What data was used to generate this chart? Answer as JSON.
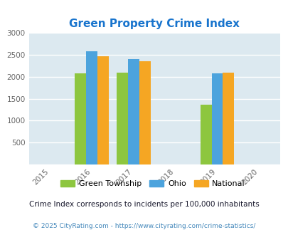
{
  "title": "Green Property Crime Index",
  "title_color": "#1874CD",
  "years": [
    2016,
    2017,
    2019
  ],
  "green_township": [
    2070,
    2100,
    1370
  ],
  "ohio": [
    2580,
    2410,
    2070
  ],
  "national": [
    2460,
    2360,
    2100
  ],
  "bar_colors": {
    "green_township": "#8DC63F",
    "ohio": "#4CA3DD",
    "national": "#F5A623"
  },
  "xlim": [
    2014.5,
    2020.5
  ],
  "ylim": [
    0,
    3000
  ],
  "yticks": [
    0,
    500,
    1000,
    1500,
    2000,
    2500,
    3000
  ],
  "xticks": [
    2015,
    2016,
    2017,
    2018,
    2019,
    2020
  ],
  "bar_width": 0.27,
  "plot_bg": "#dce9f0",
  "fig_bg": "#ffffff",
  "grid_color": "#ffffff",
  "legend_labels": [
    "Green Township",
    "Ohio",
    "National"
  ],
  "footnote1": "Crime Index corresponds to incidents per 100,000 inhabitants",
  "footnote2": "© 2025 CityRating.com - https://www.cityrating.com/crime-statistics/",
  "footnote1_color": "#1a1a2e",
  "footnote2_color": "#4488bb"
}
